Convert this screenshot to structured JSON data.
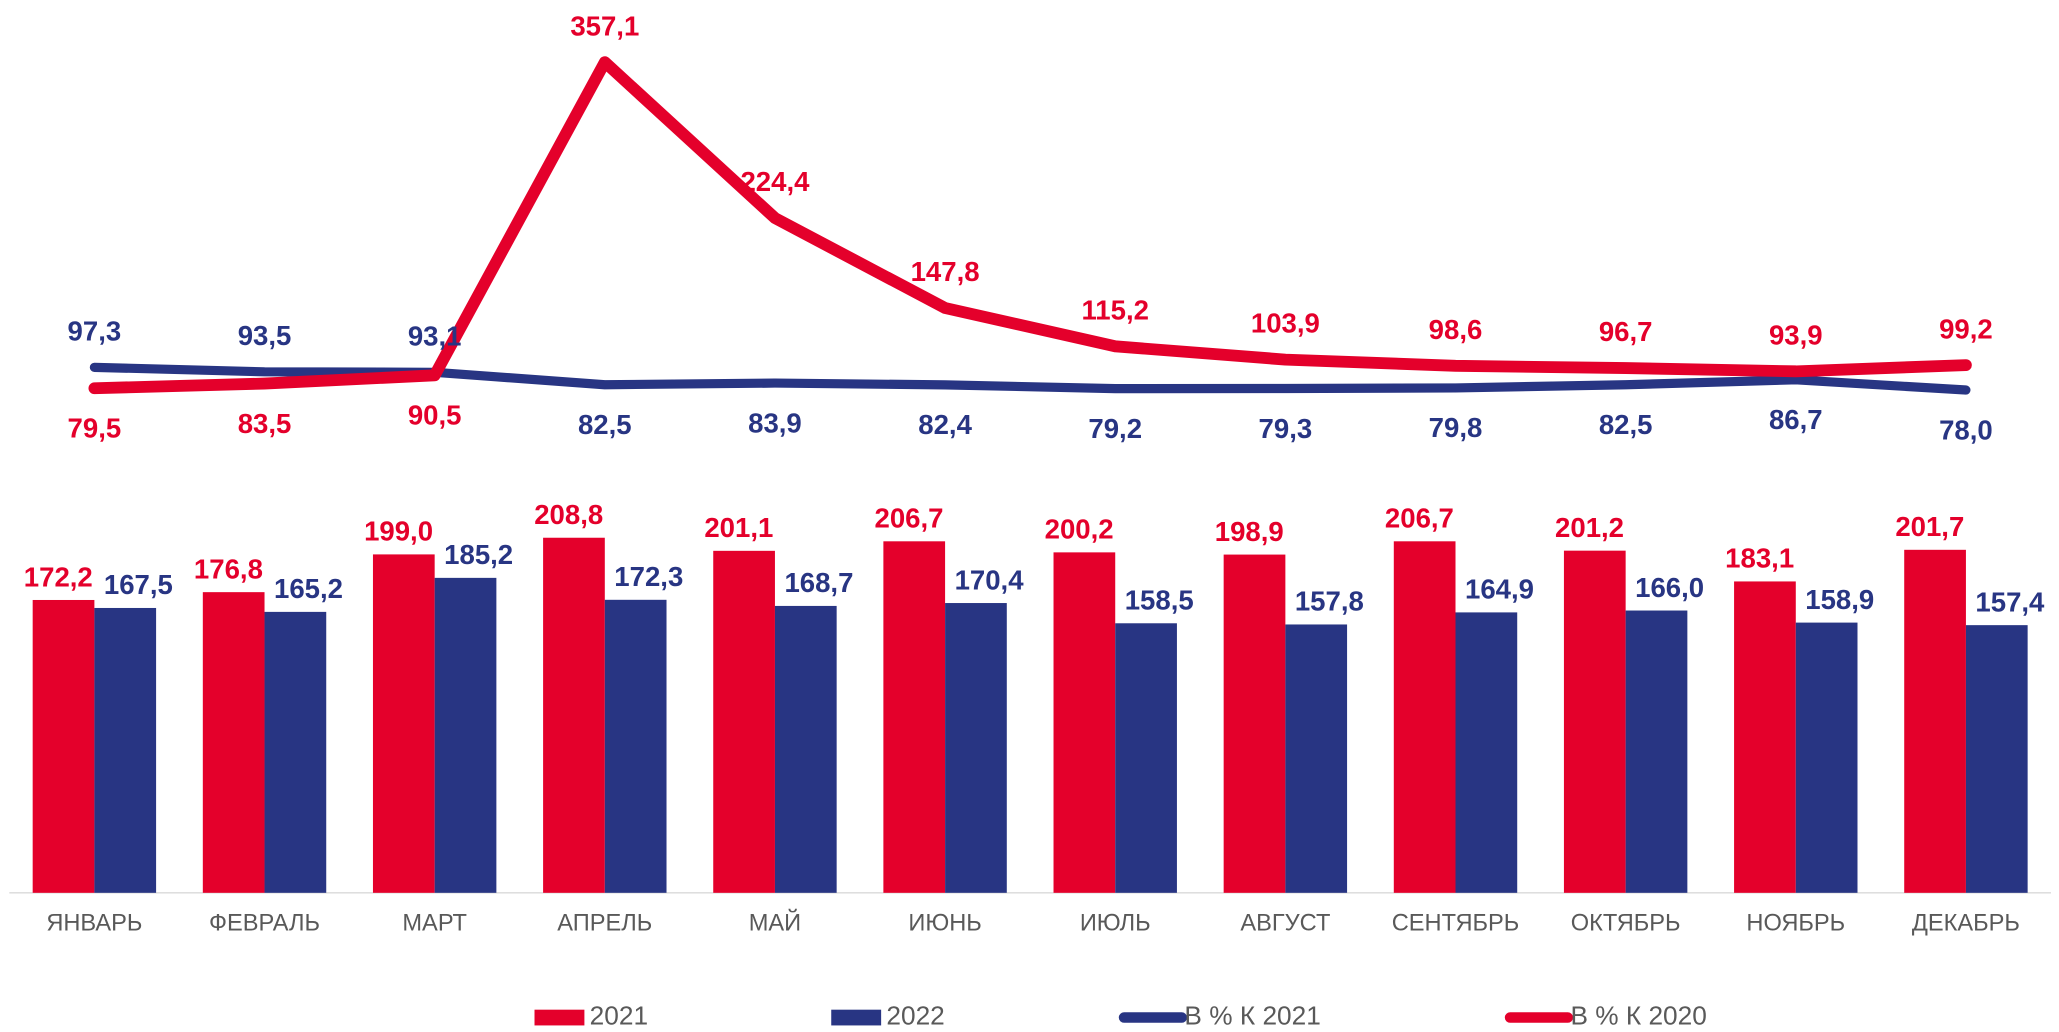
{
  "chart_data": {
    "type": "bar",
    "categories": [
      "ЯНВАРЬ",
      "ФЕВРАЛЬ",
      "МАРТ",
      "АПРЕЛЬ",
      "МАЙ",
      "ИЮНЬ",
      "ИЮЛЬ",
      "АВГУСТ",
      "СЕНТЯБРЬ",
      "ОКТЯБРЬ",
      "НОЯБРЬ",
      "ДЕКАБРЬ"
    ],
    "ylim": [
      0,
      525
    ],
    "y2lim": [
      -350,
      410
    ],
    "series": [
      {
        "name": "2021",
        "type": "bar",
        "color": "#e4002b",
        "values": [
          172.2,
          176.8,
          199.0,
          208.8,
          201.1,
          206.7,
          200.2,
          198.9,
          206.7,
          201.2,
          183.1,
          201.7
        ],
        "value_labels": [
          "172,2",
          "176,8",
          "199,0",
          "208,8",
          "201,1",
          "206,7",
          "200,2",
          "198,9",
          "206,7",
          "201,2",
          "183,1",
          "201,7"
        ]
      },
      {
        "name": "2022",
        "type": "bar",
        "color": "#283583",
        "values": [
          167.5,
          165.2,
          185.2,
          172.3,
          168.7,
          170.4,
          158.5,
          157.8,
          164.9,
          166.0,
          158.9,
          157.4
        ],
        "value_labels": [
          "167,5",
          "165,2",
          "185,2",
          "172,3",
          "168,7",
          "170,4",
          "158,5",
          "157,8",
          "164,9",
          "166,0",
          "158,9",
          "157,4"
        ]
      },
      {
        "name": "В % К 2021",
        "type": "line",
        "axis": "y2",
        "color": "#283583",
        "values": [
          97.3,
          93.5,
          93.1,
          82.5,
          83.9,
          82.4,
          79.2,
          79.3,
          79.8,
          82.5,
          86.7,
          78.0
        ],
        "value_labels": [
          "97,3",
          "93,5",
          "93,1",
          "82,5",
          "83,9",
          "82,4",
          "79,2",
          "79,3",
          "79,8",
          "82,5",
          "86,7",
          "78,0"
        ]
      },
      {
        "name": "В % К 2020",
        "type": "line",
        "axis": "y2",
        "color": "#e4002b",
        "values": [
          79.5,
          83.5,
          90.5,
          357.1,
          224.4,
          147.8,
          115.2,
          103.9,
          98.6,
          96.7,
          93.9,
          99.2
        ],
        "value_labels": [
          "79,5",
          "83,5",
          "90,5",
          "357,1",
          "224,4",
          "147,8",
          "115,2",
          "103,9",
          "98,6",
          "96,7",
          "93,9",
          "99,2"
        ]
      }
    ]
  }
}
